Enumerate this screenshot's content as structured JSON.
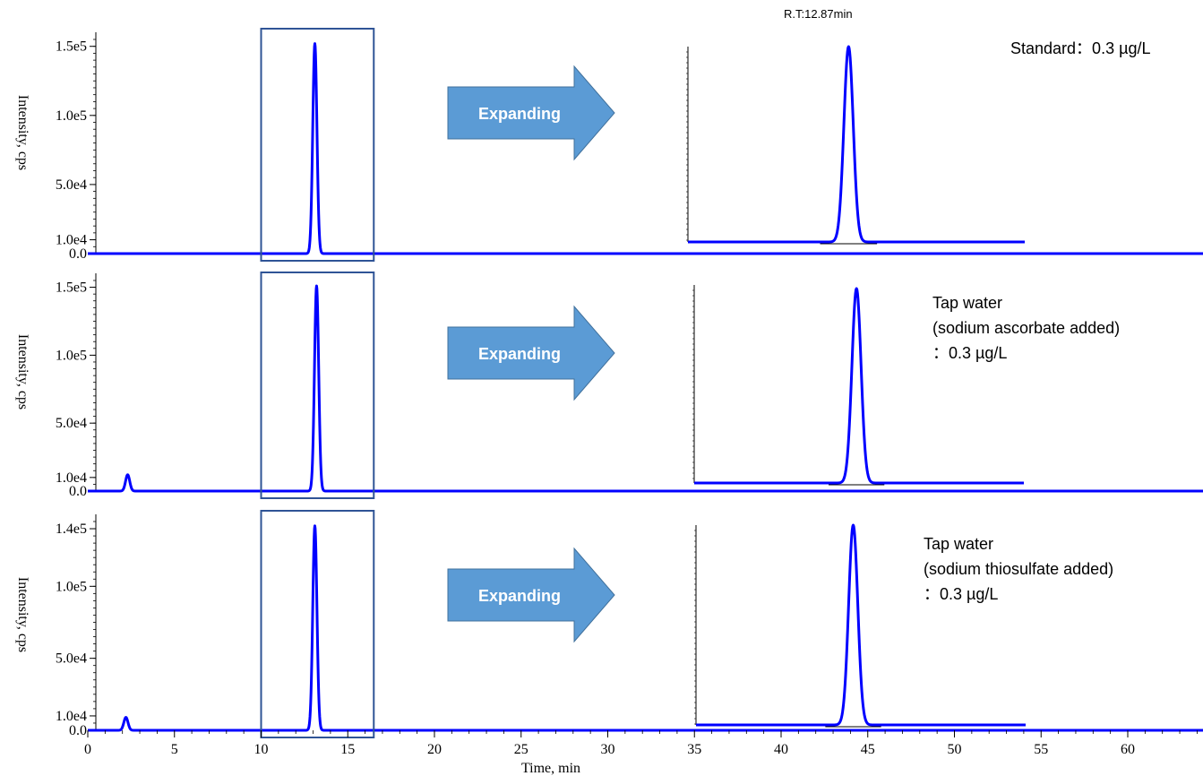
{
  "colors": {
    "trace": "#0000ff",
    "box": "#2f5496",
    "arrow_fill": "#5b9bd5",
    "arrow_stroke": "#41719c"
  },
  "rt_note": "R.T:12.87min",
  "arrow_label": "Expanding",
  "x_axis": {
    "label": "Time, min",
    "ticks": [
      "0",
      "5",
      "10",
      "15",
      "20",
      "25",
      "30",
      "35",
      "40",
      "45",
      "50",
      "55",
      "60"
    ]
  },
  "chart_data": [
    {
      "type": "line",
      "sample_lines": [
        "Standard：0.3 µg/L"
      ],
      "ylabel": "Intensity, cps",
      "ytick_labels": [
        "0.0",
        "1.0e4",
        "5.0e4",
        "1.0e5",
        "1.5e5"
      ],
      "ytick_values": [
        0,
        10000,
        50000,
        100000,
        150000
      ],
      "ylim": [
        0,
        155000
      ],
      "xlim": [
        0,
        65
      ],
      "peaks": [
        {
          "rt": 13.1,
          "height": 152000
        }
      ],
      "zoom_window": [
        10,
        16.5
      ],
      "zoom_peak_height": 149000
    },
    {
      "type": "line",
      "sample_lines": [
        "Tap water",
        "(sodium ascorbate added)",
        "：0.3 µg/L"
      ],
      "ylabel": "Intensity, cps",
      "ytick_labels": [
        "0.0",
        "1.0e4",
        "5.0e4",
        "1.0e5",
        "1.5e5"
      ],
      "ytick_values": [
        0,
        10000,
        50000,
        100000,
        150000
      ],
      "ylim": [
        0,
        155000
      ],
      "xlim": [
        0,
        65
      ],
      "peaks": [
        {
          "rt": 2.3,
          "height": 12000
        },
        {
          "rt": 13.2,
          "height": 151000
        }
      ],
      "zoom_window": [
        10,
        16.5
      ],
      "zoom_peak_height": 149000
    },
    {
      "type": "line",
      "sample_lines": [
        "Tap water",
        "(sodium thiosulfate added)",
        "：0.3 µg/L"
      ],
      "ylabel": "Intensity, cps",
      "ytick_labels": [
        "0.0",
        "1.0e4",
        "5.0e4",
        "1.0e5",
        "1.4e5"
      ],
      "ytick_values": [
        0,
        10000,
        50000,
        100000,
        140000
      ],
      "ylim": [
        0,
        145000
      ],
      "xlim": [
        0,
        65
      ],
      "peaks": [
        {
          "rt": 2.2,
          "height": 9000
        },
        {
          "rt": 13.1,
          "height": 142000
        }
      ],
      "zoom_window": [
        10,
        16.5
      ],
      "zoom_peak_height": 140000
    }
  ]
}
